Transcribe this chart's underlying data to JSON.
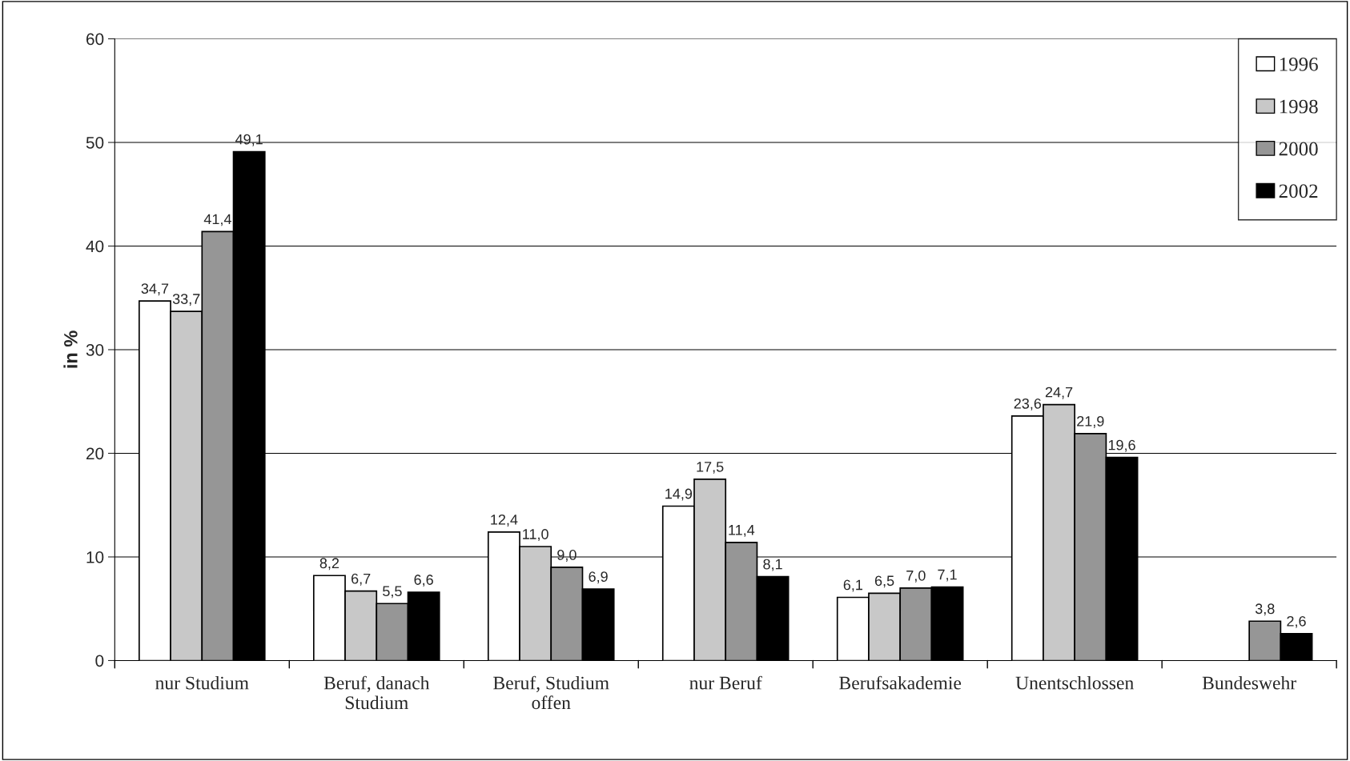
{
  "chart_data": {
    "type": "bar",
    "ylabel": "in %",
    "categories": [
      "nur Studium",
      "Beruf, danach\nStudium",
      "Beruf, Studium\noffen",
      "nur Beruf",
      "Berufsakademie",
      "Unentschlossen",
      "Bundeswehr"
    ],
    "series": [
      {
        "name": "1996",
        "color": "#ffffff",
        "values": [
          34.7,
          8.2,
          12.4,
          14.9,
          6.1,
          23.6,
          null
        ],
        "value_labels": [
          "34,7",
          "8,2",
          "12,4",
          "14,9",
          "6,1",
          "23,6",
          null
        ]
      },
      {
        "name": "1998",
        "color": "#c8c8c8",
        "values": [
          33.7,
          6.7,
          11.0,
          17.5,
          6.5,
          24.7,
          null
        ],
        "value_labels": [
          "33,7",
          "6,7",
          "11,0",
          "17,5",
          "6,5",
          "24,7",
          null
        ]
      },
      {
        "name": "2000",
        "color": "#969696",
        "values": [
          41.4,
          5.5,
          9.0,
          11.4,
          7.0,
          21.9,
          3.8
        ],
        "value_labels": [
          "41,4",
          "5,5",
          "9,0",
          "11,4",
          "7,0",
          "21,9",
          "3,8"
        ]
      },
      {
        "name": "2002",
        "color": "#000000",
        "values": [
          49.1,
          6.6,
          6.9,
          8.1,
          7.1,
          19.6,
          2.6
        ],
        "value_labels": [
          "49,1",
          "6,6",
          "6,9",
          "8,1",
          "7,1",
          "19,6",
          "2,6"
        ]
      }
    ],
    "ylim": [
      0,
      60
    ],
    "yticks": [
      0,
      10,
      20,
      30,
      40,
      50,
      60
    ],
    "grid": "y",
    "legend": "top right"
  }
}
